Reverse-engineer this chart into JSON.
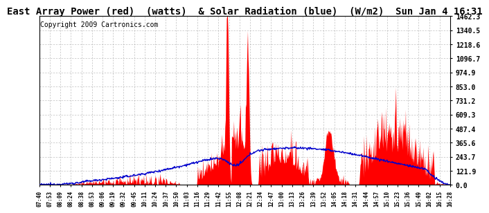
{
  "title": "East Array Power (red)  (watts)  & Solar Radiation (blue)  (W/m2)  Sun Jan 4 16:31",
  "copyright": "Copyright 2009 Cartronics.com",
  "y_ticks": [
    0.0,
    121.9,
    243.7,
    365.6,
    487.4,
    609.3,
    731.2,
    853.0,
    974.9,
    1096.7,
    1218.6,
    1340.5,
    1462.3
  ],
  "x_labels": [
    "07:40",
    "07:53",
    "08:09",
    "08:24",
    "08:38",
    "08:53",
    "09:06",
    "09:19",
    "09:32",
    "09:45",
    "10:11",
    "10:24",
    "10:37",
    "10:50",
    "11:03",
    "11:16",
    "11:29",
    "11:42",
    "11:55",
    "12:08",
    "12:21",
    "12:34",
    "12:47",
    "13:00",
    "13:13",
    "13:26",
    "13:39",
    "13:52",
    "14:05",
    "14:18",
    "14:31",
    "14:44",
    "14:57",
    "15:10",
    "15:23",
    "15:36",
    "15:49",
    "16:02",
    "16:15",
    "16:28"
  ],
  "ymax": 1462.3,
  "ymin": 0.0,
  "background_color": "#ffffff",
  "grid_color": "#aaaaaa",
  "red_color": "#ff0000",
  "blue_color": "#0000cc",
  "title_fontsize": 10,
  "copyright_fontsize": 7
}
